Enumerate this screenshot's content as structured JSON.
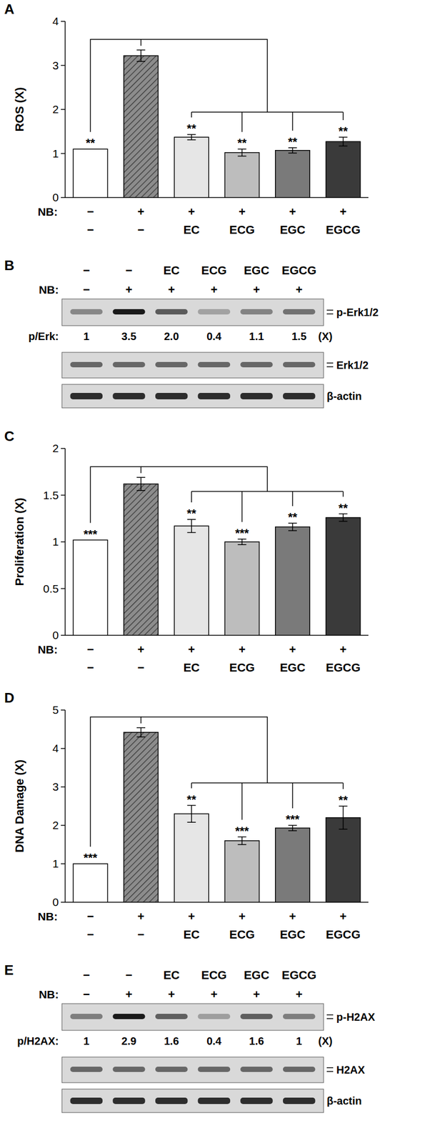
{
  "chart_data": [
    {
      "title": "A",
      "type": "bar",
      "y_label": "ROS (X)",
      "categories": [
        "−",
        "−",
        "EC",
        "ECG",
        "EGC",
        "EGCG"
      ],
      "nb_label": "NB:",
      "nb": [
        "−",
        "+",
        "+",
        "+",
        "+",
        "+"
      ],
      "values": [
        1.1,
        3.22,
        1.37,
        1.02,
        1.07,
        1.27
      ],
      "errors": [
        null,
        0.13,
        0.06,
        0.08,
        0.06,
        0.1
      ],
      "significance": [
        "**",
        null,
        "**",
        "**",
        "**",
        "**"
      ],
      "colors": [
        "#ffffff",
        "#8c8c8c",
        "#e6e6e6",
        "#bdbdbd",
        "#7a7a7a",
        "#3a3a3a"
      ],
      "ylim": [
        0,
        4
      ],
      "yticks": [
        0,
        1,
        2,
        3,
        4
      ]
    },
    {
      "title": "C",
      "type": "bar",
      "y_label": "Proliferation (X)",
      "categories": [
        "−",
        "−",
        "EC",
        "ECG",
        "EGC",
        "EGCG"
      ],
      "nb_label": "NB:",
      "nb": [
        "−",
        "+",
        "+",
        "+",
        "+",
        "+"
      ],
      "values": [
        1.02,
        1.62,
        1.17,
        1.0,
        1.16,
        1.26
      ],
      "errors": [
        null,
        0.07,
        0.07,
        0.03,
        0.04,
        0.04
      ],
      "significance": [
        "***",
        null,
        "**",
        "***",
        "**",
        "**"
      ],
      "colors": [
        "#ffffff",
        "#8c8c8c",
        "#e6e6e6",
        "#bdbdbd",
        "#7a7a7a",
        "#3a3a3a"
      ],
      "ylim": [
        0,
        2
      ],
      "yticks": [
        0,
        0.5,
        1,
        1.5,
        2
      ]
    },
    {
      "title": "D",
      "type": "bar",
      "y_label": "DNA Damage (X)",
      "categories": [
        "−",
        "−",
        "EC",
        "ECG",
        "EGC",
        "EGCG"
      ],
      "nb_label": "NB:",
      "nb": [
        "−",
        "+",
        "+",
        "+",
        "+",
        "+"
      ],
      "values": [
        1.0,
        4.42,
        2.3,
        1.6,
        1.93,
        2.2
      ],
      "errors": [
        null,
        0.12,
        0.22,
        0.1,
        0.07,
        0.3
      ],
      "significance": [
        "***",
        null,
        "**",
        "***",
        "***",
        "**"
      ],
      "colors": [
        "#ffffff",
        "#8c8c8c",
        "#e6e6e6",
        "#bdbdbd",
        "#7a7a7a",
        "#3a3a3a"
      ],
      "ylim": [
        0,
        5
      ],
      "yticks": [
        0,
        1,
        2,
        3,
        4,
        5
      ]
    }
  ],
  "blots": [
    {
      "title": "B",
      "treatments": [
        "−",
        "−",
        "EC",
        "ECG",
        "EGC",
        "EGCG"
      ],
      "nb_label": "NB:",
      "nb": [
        "−",
        "+",
        "+",
        "+",
        "+",
        "+"
      ],
      "rows": [
        "p-Erk1/2",
        "Erk1/2",
        "β-actin"
      ],
      "ratio_label": "p/Erk:",
      "ratios": {
        "values": [
          1,
          3.5,
          2.0,
          0.4,
          1.1,
          1.5
        ],
        "value_labels": [
          "1",
          "3.5",
          "2.0",
          "0.4",
          "1.1",
          "1.5"
        ]
      },
      "ratio_unit": "(X)"
    },
    {
      "title": "E",
      "treatments": [
        "−",
        "−",
        "EC",
        "ECG",
        "EGC",
        "EGCG"
      ],
      "nb_label": "NB:",
      "nb": [
        "−",
        "+",
        "+",
        "+",
        "+",
        "+"
      ],
      "rows": [
        "p-H2AX",
        "H2AX",
        "β-actin"
      ],
      "ratio_label": "p/H2AX:",
      "ratios": {
        "values": [
          1,
          2.9,
          1.6,
          0.4,
          1.6,
          1
        ],
        "value_labels": [
          "1",
          "2.9",
          "1.6",
          "0.4",
          "1.6",
          "1"
        ]
      },
      "ratio_unit": "(X)"
    }
  ]
}
